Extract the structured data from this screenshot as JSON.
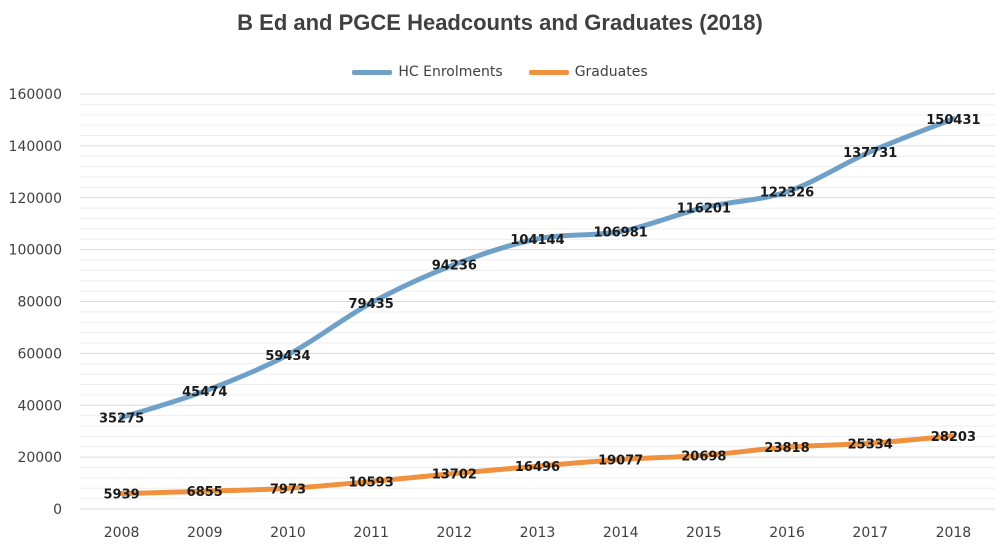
{
  "chart_data": {
    "type": "line",
    "title": "B Ed and PGCE Headcounts and Graduates (2018)",
    "xlabel": "",
    "ylabel": "",
    "categories": [
      "2008",
      "2009",
      "2010",
      "2011",
      "2012",
      "2013",
      "2014",
      "2015",
      "2016",
      "2017",
      "2018"
    ],
    "ylim": [
      0,
      160000
    ],
    "yticks": [
      0,
      20000,
      40000,
      60000,
      80000,
      100000,
      120000,
      140000,
      160000
    ],
    "grid": true,
    "legend_position": "top",
    "series": [
      {
        "name": "HC Enrolments",
        "color": "#6fa0c8",
        "values": [
          35275,
          45474,
          59434,
          79435,
          94236,
          104144,
          106981,
          116201,
          122326,
          137731,
          150431
        ]
      },
      {
        "name": "Graduates",
        "color": "#f0913f",
        "values": [
          5939,
          6855,
          7973,
          10593,
          13702,
          16496,
          19077,
          20698,
          23818,
          25334,
          28203
        ]
      }
    ]
  }
}
